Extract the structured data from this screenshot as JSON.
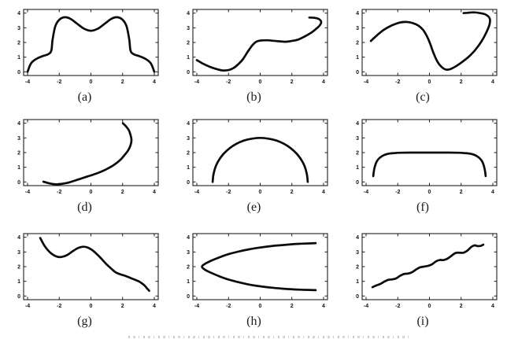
{
  "page": {
    "background": "#ffffff"
  },
  "figure": {
    "curve_color": "#0b0b0b",
    "axis_color": "#1f1f1f",
    "tick_label_color": "#141414",
    "x_ticks": [
      -4,
      -2,
      0,
      2,
      4
    ],
    "y_ticks": [
      0,
      1,
      2,
      3,
      4
    ],
    "xlim": [
      -4.25,
      4.25
    ],
    "ylim": [
      -0.25,
      4.25
    ],
    "grid": false,
    "legend": null
  },
  "chart_data": [
    {
      "type": "line",
      "label": "(a)",
      "x_ticks": [
        -4,
        -2,
        0,
        2,
        4
      ],
      "y_ticks": [
        0,
        1,
        2,
        3,
        4
      ],
      "points": [
        [
          -4,
          0
        ],
        [
          -3.8,
          0.55
        ],
        [
          -3.5,
          0.85
        ],
        [
          -3.1,
          1.05
        ],
        [
          -2.7,
          1.2
        ],
        [
          -2.5,
          1.45
        ],
        [
          -2.42,
          2.2
        ],
        [
          -2.25,
          3.1
        ],
        [
          -2,
          3.55
        ],
        [
          -1.65,
          3.72
        ],
        [
          -1.3,
          3.62
        ],
        [
          -0.9,
          3.3
        ],
        [
          -0.45,
          2.95
        ],
        [
          0,
          2.8
        ],
        [
          0.45,
          2.95
        ],
        [
          0.9,
          3.3
        ],
        [
          1.3,
          3.62
        ],
        [
          1.65,
          3.72
        ],
        [
          2,
          3.55
        ],
        [
          2.25,
          3.1
        ],
        [
          2.42,
          2.2
        ],
        [
          2.5,
          1.45
        ],
        [
          2.7,
          1.2
        ],
        [
          3.1,
          1.05
        ],
        [
          3.5,
          0.85
        ],
        [
          3.8,
          0.55
        ],
        [
          4,
          0
        ]
      ]
    },
    {
      "type": "line",
      "label": "(b)",
      "x_ticks": [
        -4,
        -2,
        0,
        2,
        4
      ],
      "y_ticks": [
        0,
        1,
        2,
        3,
        4
      ],
      "points": [
        [
          -4,
          0.8
        ],
        [
          -3.6,
          0.55
        ],
        [
          -3.2,
          0.35
        ],
        [
          -2.8,
          0.2
        ],
        [
          -2.4,
          0.1
        ],
        [
          -2,
          0.12
        ],
        [
          -1.7,
          0.25
        ],
        [
          -1.4,
          0.5
        ],
        [
          -1.1,
          0.85
        ],
        [
          -0.8,
          1.35
        ],
        [
          -0.5,
          1.8
        ],
        [
          -0.25,
          2.05
        ],
        [
          0,
          2.13
        ],
        [
          0.4,
          2.15
        ],
        [
          0.8,
          2.12
        ],
        [
          1.2,
          2.08
        ],
        [
          1.6,
          2.05
        ],
        [
          2,
          2.1
        ],
        [
          2.4,
          2.2
        ],
        [
          2.8,
          2.4
        ],
        [
          3.2,
          2.65
        ],
        [
          3.5,
          2.9
        ],
        [
          3.75,
          3.15
        ],
        [
          3.85,
          3.4
        ],
        [
          3.7,
          3.6
        ],
        [
          3.4,
          3.68
        ],
        [
          3.1,
          3.7
        ]
      ]
    },
    {
      "type": "line",
      "label": "(c)",
      "x_ticks": [
        -4,
        -2,
        0,
        2,
        4
      ],
      "y_ticks": [
        0,
        1,
        2,
        3,
        4
      ],
      "points": [
        [
          -3.7,
          2.1
        ],
        [
          -3.3,
          2.5
        ],
        [
          -2.9,
          2.85
        ],
        [
          -2.4,
          3.15
        ],
        [
          -1.9,
          3.35
        ],
        [
          -1.45,
          3.4
        ],
        [
          -1.05,
          3.32
        ],
        [
          -0.7,
          3.15
        ],
        [
          -0.4,
          2.85
        ],
        [
          -0.15,
          2.4
        ],
        [
          0.05,
          1.9
        ],
        [
          0.25,
          1.3
        ],
        [
          0.5,
          0.7
        ],
        [
          0.75,
          0.35
        ],
        [
          1.05,
          0.15
        ],
        [
          1.35,
          0.2
        ],
        [
          1.7,
          0.4
        ],
        [
          2.1,
          0.7
        ],
        [
          2.5,
          1.05
        ],
        [
          2.9,
          1.5
        ],
        [
          3.3,
          2.1
        ],
        [
          3.6,
          2.7
        ],
        [
          3.8,
          3.25
        ],
        [
          3.8,
          3.65
        ],
        [
          3.55,
          3.9
        ],
        [
          3.2,
          4.0
        ],
        [
          2.8,
          4.05
        ],
        [
          2.4,
          4.02
        ],
        [
          2.15,
          4.0
        ]
      ]
    },
    {
      "type": "line",
      "label": "(d)",
      "x_ticks": [
        -4,
        -2,
        0,
        2,
        4
      ],
      "y_ticks": [
        0,
        1,
        2,
        3,
        4
      ],
      "points": [
        [
          -3,
          0.02
        ],
        [
          -2.6,
          -0.1
        ],
        [
          -2.2,
          -0.16
        ],
        [
          -1.8,
          -0.12
        ],
        [
          -1.4,
          -0.04
        ],
        [
          -1,
          0.1
        ],
        [
          -0.6,
          0.24
        ],
        [
          -0.2,
          0.38
        ],
        [
          0.2,
          0.52
        ],
        [
          0.6,
          0.68
        ],
        [
          1,
          0.88
        ],
        [
          1.4,
          1.12
        ],
        [
          1.8,
          1.45
        ],
        [
          2.1,
          1.8
        ],
        [
          2.35,
          2.15
        ],
        [
          2.5,
          2.5
        ],
        [
          2.56,
          2.85
        ],
        [
          2.5,
          3.2
        ],
        [
          2.38,
          3.55
        ],
        [
          2.2,
          3.8
        ],
        [
          2.02,
          4.0
        ]
      ]
    },
    {
      "type": "line",
      "label": "(e)",
      "x_ticks": [
        -4,
        -2,
        0,
        2,
        4
      ],
      "y_ticks": [
        0,
        1,
        2,
        3,
        4
      ],
      "points": [
        [
          -3,
          0
        ],
        [
          -2.95,
          0.52
        ],
        [
          -2.82,
          1.03
        ],
        [
          -2.6,
          1.5
        ],
        [
          -2.3,
          1.93
        ],
        [
          -1.93,
          2.3
        ],
        [
          -1.5,
          2.6
        ],
        [
          -1.03,
          2.82
        ],
        [
          -0.52,
          2.95
        ],
        [
          0,
          3
        ],
        [
          0.52,
          2.95
        ],
        [
          1.03,
          2.82
        ],
        [
          1.5,
          2.6
        ],
        [
          1.93,
          2.3
        ],
        [
          2.3,
          1.93
        ],
        [
          2.6,
          1.5
        ],
        [
          2.82,
          1.03
        ],
        [
          2.95,
          0.52
        ],
        [
          3,
          0
        ]
      ]
    },
    {
      "type": "line",
      "label": "(f)",
      "x_ticks": [
        -4,
        -2,
        0,
        2,
        4
      ],
      "y_ticks": [
        0,
        1,
        2,
        3,
        4
      ],
      "points": [
        [
          -3.55,
          0.4
        ],
        [
          -3.5,
          0.8
        ],
        [
          -3.42,
          1.15
        ],
        [
          -3.3,
          1.45
        ],
        [
          -3.1,
          1.68
        ],
        [
          -2.85,
          1.84
        ],
        [
          -2.55,
          1.93
        ],
        [
          -2.2,
          1.97
        ],
        [
          -1.8,
          1.99
        ],
        [
          -1.2,
          2.0
        ],
        [
          -0.6,
          2.0
        ],
        [
          0,
          2.0
        ],
        [
          0.6,
          2.0
        ],
        [
          1.2,
          2.0
        ],
        [
          1.8,
          1.99
        ],
        [
          2.2,
          1.97
        ],
        [
          2.55,
          1.93
        ],
        [
          2.85,
          1.84
        ],
        [
          3.1,
          1.68
        ],
        [
          3.3,
          1.45
        ],
        [
          3.42,
          1.15
        ],
        [
          3.5,
          0.8
        ],
        [
          3.55,
          0.4
        ]
      ]
    },
    {
      "type": "line",
      "label": "(g)",
      "x_ticks": [
        -4,
        -2,
        0,
        2,
        4
      ],
      "y_ticks": [
        0,
        1,
        2,
        3,
        4
      ],
      "points": [
        [
          -3.2,
          3.95
        ],
        [
          -2.95,
          3.45
        ],
        [
          -2.7,
          3.1
        ],
        [
          -2.45,
          2.85
        ],
        [
          -2.2,
          2.7
        ],
        [
          -1.95,
          2.65
        ],
        [
          -1.7,
          2.7
        ],
        [
          -1.45,
          2.82
        ],
        [
          -1.15,
          3.05
        ],
        [
          -0.85,
          3.25
        ],
        [
          -0.55,
          3.35
        ],
        [
          -0.25,
          3.32
        ],
        [
          0.05,
          3.15
        ],
        [
          0.35,
          2.88
        ],
        [
          0.65,
          2.55
        ],
        [
          0.95,
          2.2
        ],
        [
          1.25,
          1.9
        ],
        [
          1.55,
          1.62
        ],
        [
          1.85,
          1.48
        ],
        [
          2.15,
          1.38
        ],
        [
          2.45,
          1.25
        ],
        [
          2.75,
          1.12
        ],
        [
          3.05,
          0.98
        ],
        [
          3.35,
          0.75
        ],
        [
          3.6,
          0.45
        ],
        [
          3.68,
          0.35
        ]
      ]
    },
    {
      "type": "line",
      "label": "(h)",
      "x_ticks": [
        -4,
        -2,
        0,
        2,
        4
      ],
      "y_ticks": [
        0,
        1,
        2,
        3,
        4
      ],
      "points": [
        [
          3.5,
          3.6
        ],
        [
          2.8,
          3.57
        ],
        [
          2.1,
          3.53
        ],
        [
          1.4,
          3.47
        ],
        [
          0.7,
          3.4
        ],
        [
          0,
          3.3
        ],
        [
          -0.7,
          3.18
        ],
        [
          -1.4,
          3.02
        ],
        [
          -2,
          2.85
        ],
        [
          -2.6,
          2.62
        ],
        [
          -3.1,
          2.4
        ],
        [
          -3.5,
          2.18
        ],
        [
          -3.68,
          2.0
        ],
        [
          -3.5,
          1.8
        ],
        [
          -3.1,
          1.58
        ],
        [
          -2.6,
          1.35
        ],
        [
          -2,
          1.12
        ],
        [
          -1.4,
          0.95
        ],
        [
          -0.7,
          0.78
        ],
        [
          0,
          0.66
        ],
        [
          0.7,
          0.57
        ],
        [
          1.4,
          0.5
        ],
        [
          2.1,
          0.45
        ],
        [
          2.8,
          0.42
        ],
        [
          3.5,
          0.4
        ]
      ]
    },
    {
      "type": "line",
      "label": "(i)",
      "x_ticks": [
        -4,
        -2,
        0,
        2,
        4
      ],
      "y_ticks": [
        0,
        1,
        2,
        3,
        4
      ],
      "points": [
        [
          -3.6,
          0.6
        ],
        [
          -3.35,
          0.72
        ],
        [
          -3.1,
          0.82
        ],
        [
          -2.85,
          0.98
        ],
        [
          -2.6,
          1.1
        ],
        [
          -2.35,
          1.13
        ],
        [
          -2.1,
          1.2
        ],
        [
          -1.85,
          1.38
        ],
        [
          -1.6,
          1.5
        ],
        [
          -1.35,
          1.53
        ],
        [
          -1.1,
          1.62
        ],
        [
          -0.85,
          1.8
        ],
        [
          -0.6,
          1.95
        ],
        [
          -0.35,
          2.0
        ],
        [
          -0.1,
          2.05
        ],
        [
          0.15,
          2.15
        ],
        [
          0.4,
          2.35
        ],
        [
          0.65,
          2.45
        ],
        [
          0.9,
          2.45
        ],
        [
          1.15,
          2.55
        ],
        [
          1.4,
          2.75
        ],
        [
          1.65,
          2.93
        ],
        [
          1.9,
          2.95
        ],
        [
          2.15,
          2.95
        ],
        [
          2.4,
          3.1
        ],
        [
          2.65,
          3.35
        ],
        [
          2.85,
          3.45
        ],
        [
          3.05,
          3.4
        ],
        [
          3.25,
          3.42
        ],
        [
          3.4,
          3.5
        ]
      ]
    }
  ]
}
